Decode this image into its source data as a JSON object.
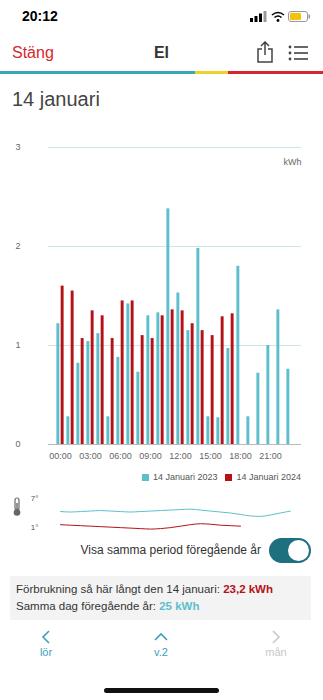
{
  "status_bar": {
    "time": "20:12"
  },
  "header": {
    "close": "Stäng",
    "title": "El"
  },
  "page_title": "14 januari",
  "chart_data": [
    {
      "type": "bar",
      "y_label": "kWh",
      "categories": [
        "00:00",
        null,
        null,
        "03:00",
        null,
        null,
        "06:00",
        null,
        null,
        "09:00",
        null,
        null,
        "12:00",
        null,
        null,
        "15:00",
        null,
        null,
        "18:00",
        null,
        null,
        "21:00",
        null,
        null
      ],
      "series": [
        {
          "name": "14 Januari 2023",
          "color": "#5dbfcc",
          "values": [
            1.22,
            0.28,
            0.82,
            1.04,
            1.12,
            0.28,
            0.88,
            1.42,
            0.73,
            1.3,
            1.33,
            2.38,
            1.53,
            1.15,
            1.98,
            0.28,
            0.27,
            0.97,
            1.8,
            0.28,
            0.72,
            1.0,
            1.36,
            0.76
          ]
        },
        {
          "name": "14 Januari 2024",
          "color": "#b31217",
          "values": [
            1.6,
            1.55,
            1.07,
            1.35,
            1.3,
            1.07,
            1.45,
            1.45,
            1.1,
            1.07,
            1.3,
            1.36,
            1.35,
            1.22,
            1.15,
            1.1,
            1.29,
            1.32,
            null,
            null,
            null,
            null,
            null,
            null
          ]
        }
      ],
      "ylim": [
        0,
        3
      ],
      "yticks": [
        0,
        1,
        2,
        3
      ],
      "grid": true,
      "legend": "bottom-right"
    },
    {
      "type": "line",
      "categories": [
        null,
        null,
        null,
        null,
        null,
        null,
        null,
        null,
        null,
        null,
        null,
        null,
        null,
        null,
        null,
        null,
        null,
        null,
        null,
        null,
        null,
        null,
        null,
        null
      ],
      "series": [
        {
          "color": "#5dbfcc",
          "values": [
            4.3,
            4.2,
            4.3,
            4.4,
            4.5,
            4.4,
            4.3,
            4.2,
            4.3,
            4.4,
            4.5,
            4.6,
            4.7,
            4.8,
            4.6,
            4.4,
            4.2,
            4.0,
            3.7,
            3.4,
            3.3,
            3.6,
            4.0,
            4.4
          ]
        },
        {
          "color": "#b31217",
          "values": [
            1.6,
            1.5,
            1.4,
            1.3,
            1.2,
            1.1,
            1.0,
            0.9,
            0.8,
            0.7,
            0.8,
            1.0,
            1.3,
            1.6,
            1.8,
            1.7,
            1.5,
            1.4,
            1.3,
            null,
            null,
            null,
            null,
            null
          ]
        }
      ],
      "ylim": [
        0,
        8
      ],
      "yticks": [
        {
          "value": 7,
          "label": "7°"
        },
        {
          "value": 1,
          "label": "1°"
        }
      ],
      "tick_labels": "y",
      "grid": false
    }
  ],
  "toggle": {
    "label": "Visa samma period föregående år",
    "on": true
  },
  "summary": {
    "rows": [
      {
        "text": "Förbrukning så här långt den 14 januari:",
        "value": "23,2 kWh",
        "color": "#b31217"
      },
      {
        "text": "Samma dag föregående år:",
        "value": "25 kWh",
        "color": "#5dbfcc"
      }
    ]
  },
  "navigation": {
    "previous": "lör",
    "current": "v.2",
    "next": "mån"
  }
}
